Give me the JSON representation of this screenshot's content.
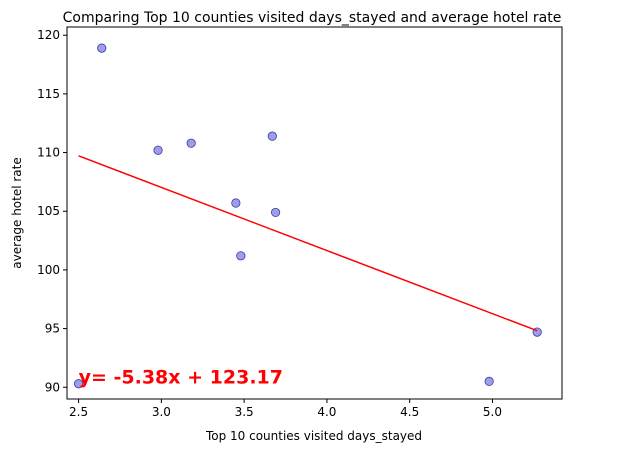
{
  "chart_data": {
    "type": "scatter",
    "title": "Comparing Top 10 counties visited days_stayed and  average hotel rate",
    "xlabel": "Top 10 counties visited days_stayed",
    "ylabel": "average hotel rate",
    "xlim": [
      2.43,
      5.42
    ],
    "ylim": [
      89.0,
      120.7
    ],
    "xticks": [
      2.5,
      3.0,
      3.5,
      4.0,
      4.5,
      5.0
    ],
    "xtick_labels": [
      "2.5",
      "3.0",
      "3.5",
      "4.0",
      "4.5",
      "5.0"
    ],
    "yticks": [
      90,
      95,
      100,
      105,
      110,
      115,
      120
    ],
    "ytick_labels": [
      "90",
      "95",
      "100",
      "105",
      "110",
      "115",
      "120"
    ],
    "grid": false,
    "points": [
      {
        "x": 2.5,
        "y": 90.3
      },
      {
        "x": 2.64,
        "y": 118.9
      },
      {
        "x": 2.98,
        "y": 110.2
      },
      {
        "x": 3.18,
        "y": 110.8
      },
      {
        "x": 3.45,
        "y": 105.7
      },
      {
        "x": 3.48,
        "y": 101.2
      },
      {
        "x": 3.67,
        "y": 111.4
      },
      {
        "x": 3.69,
        "y": 104.9
      },
      {
        "x": 4.98,
        "y": 90.5
      },
      {
        "x": 5.27,
        "y": 94.7
      }
    ],
    "regression": {
      "slope": -5.38,
      "intercept": 123.17,
      "x_from": 2.5,
      "x_to": 5.27
    },
    "annotation": {
      "text": "y= -5.38x + 123.17",
      "x": 2.5,
      "y": 90.3
    },
    "colors": {
      "points": "#8c8ceb",
      "point_edge": "#3a3a9c",
      "regression": "#ff0000",
      "annotation": "#ff0000"
    }
  }
}
